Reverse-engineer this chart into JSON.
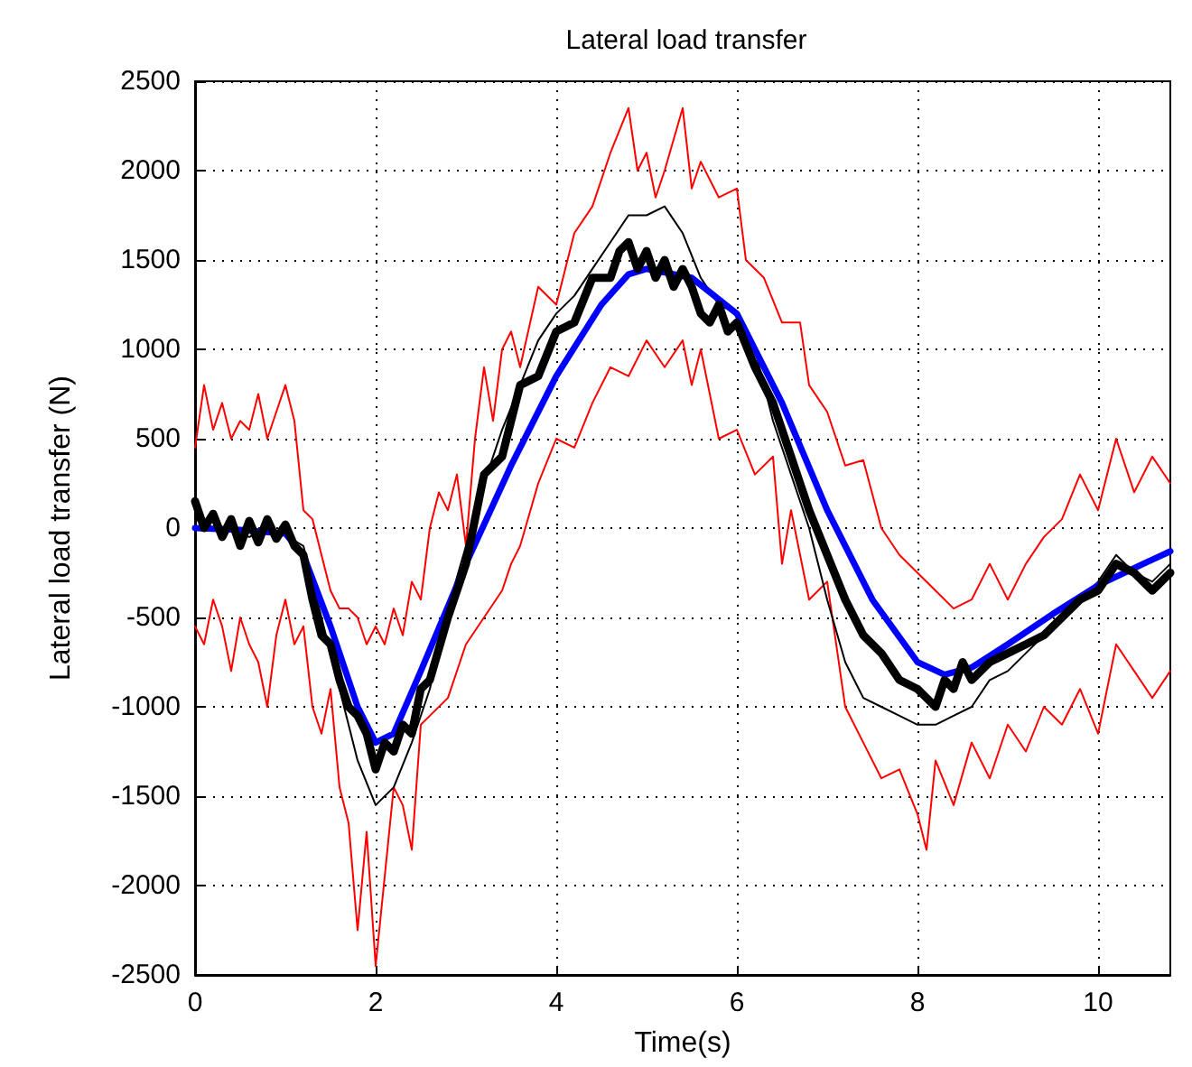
{
  "chart_data": {
    "type": "line",
    "title": "Lateral load transfer",
    "xlabel": "Time(s)",
    "ylabel": "Lateral load transfer (N)",
    "xlim": [
      0,
      10.8
    ],
    "xticks": [
      0,
      2,
      4,
      6,
      8,
      10
    ],
    "ylim": [
      -2500,
      2500
    ],
    "yticks": [
      -2500,
      -2000,
      -1500,
      -1000,
      -500,
      0,
      500,
      1000,
      1500,
      2000,
      2500
    ],
    "grid": true,
    "marker": "none",
    "line_style": "solid",
    "series": [
      {
        "color": "#ff0000",
        "x": [
          0,
          0.1,
          0.2,
          0.3,
          0.4,
          0.5,
          0.6,
          0.7,
          0.8,
          0.9,
          1.0,
          1.1,
          1.2,
          1.3,
          1.4,
          1.5,
          1.6,
          1.7,
          1.8,
          1.9,
          2.0,
          2.1,
          2.2,
          2.3,
          2.4,
          2.5,
          2.6,
          2.7,
          2.8,
          2.9,
          3.0,
          3.1,
          3.2,
          3.3,
          3.4,
          3.5,
          3.6,
          3.8,
          4.0,
          4.2,
          4.4,
          4.6,
          4.8,
          4.9,
          5.0,
          5.1,
          5.2,
          5.4,
          5.5,
          5.6,
          5.8,
          6.0,
          6.1,
          6.3,
          6.5,
          6.7,
          6.8,
          7.0,
          7.2,
          7.4,
          7.6,
          7.8,
          8.0,
          8.2,
          8.4,
          8.6,
          8.8,
          9.0,
          9.2,
          9.4,
          9.6,
          9.8,
          10.0,
          10.2,
          10.4,
          10.6,
          10.8
        ],
        "values": [
          450,
          800,
          550,
          700,
          500,
          600,
          550,
          750,
          500,
          650,
          800,
          600,
          100,
          50,
          -150,
          -350,
          -450,
          -450,
          -500,
          -650,
          -550,
          -650,
          -450,
          -600,
          -300,
          -400,
          0,
          200,
          100,
          300,
          -100,
          500,
          900,
          600,
          1000,
          1100,
          900,
          1350,
          1250,
          1650,
          1800,
          2100,
          2350,
          2000,
          2100,
          1850,
          2000,
          2350,
          1900,
          2050,
          1850,
          1900,
          1500,
          1400,
          1150,
          1150,
          800,
          650,
          350,
          380,
          0,
          -150,
          -250,
          -350,
          -450,
          -400,
          -200,
          -400,
          -200,
          -50,
          50,
          300,
          100,
          500,
          200,
          400,
          250
        ]
      },
      {
        "color": "#ff0000",
        "x": [
          0,
          0.1,
          0.2,
          0.3,
          0.4,
          0.5,
          0.6,
          0.7,
          0.8,
          0.9,
          1.0,
          1.1,
          1.2,
          1.3,
          1.4,
          1.5,
          1.6,
          1.7,
          1.8,
          1.9,
          2.0,
          2.1,
          2.2,
          2.3,
          2.4,
          2.5,
          2.6,
          2.8,
          3.0,
          3.2,
          3.4,
          3.5,
          3.6,
          3.8,
          4.0,
          4.2,
          4.4,
          4.6,
          4.8,
          5.0,
          5.2,
          5.4,
          5.5,
          5.6,
          5.8,
          6.0,
          6.2,
          6.4,
          6.5,
          6.6,
          6.8,
          7.0,
          7.2,
          7.4,
          7.6,
          7.8,
          8.0,
          8.1,
          8.2,
          8.4,
          8.6,
          8.8,
          9.0,
          9.2,
          9.4,
          9.6,
          9.8,
          10.0,
          10.2,
          10.4,
          10.6,
          10.8
        ],
        "values": [
          -550,
          -650,
          -400,
          -550,
          -800,
          -500,
          -650,
          -750,
          -1000,
          -600,
          -400,
          -650,
          -550,
          -1000,
          -1150,
          -900,
          -1450,
          -1650,
          -2250,
          -1700,
          -2450,
          -1950,
          -1450,
          -1550,
          -1800,
          -1100,
          -1050,
          -950,
          -650,
          -500,
          -350,
          -200,
          -100,
          250,
          500,
          450,
          700,
          900,
          850,
          1050,
          900,
          1050,
          800,
          1000,
          500,
          550,
          300,
          400,
          -200,
          100,
          -400,
          -300,
          -1000,
          -1200,
          -1400,
          -1350,
          -1600,
          -1800,
          -1300,
          -1550,
          -1200,
          -1400,
          -1100,
          -1250,
          -1000,
          -1100,
          -900,
          -1150,
          -650,
          -800,
          -950,
          -800
        ]
      },
      {
        "color": "#000000",
        "x": [
          0,
          0.2,
          0.4,
          0.6,
          0.8,
          1.0,
          1.2,
          1.4,
          1.6,
          1.8,
          2.0,
          2.2,
          2.4,
          2.6,
          2.8,
          3.0,
          3.2,
          3.4,
          3.6,
          3.8,
          4.0,
          4.2,
          4.4,
          4.6,
          4.8,
          5.0,
          5.2,
          5.4,
          5.6,
          5.8,
          6.0,
          6.2,
          6.4,
          6.6,
          6.8,
          7.0,
          7.2,
          7.4,
          7.6,
          7.8,
          8.0,
          8.2,
          8.4,
          8.6,
          8.8,
          9.0,
          9.2,
          9.4,
          9.6,
          9.8,
          10.0,
          10.2,
          10.4,
          10.6,
          10.8
        ],
        "values": [
          50,
          0,
          -20,
          -50,
          0,
          -40,
          -100,
          -500,
          -900,
          -1300,
          -1550,
          -1450,
          -1200,
          -900,
          -450,
          -100,
          250,
          550,
          800,
          1050,
          1200,
          1300,
          1450,
          1600,
          1750,
          1750,
          1800,
          1650,
          1400,
          1250,
          1200,
          1000,
          600,
          300,
          0,
          -400,
          -750,
          -950,
          -1000,
          -1050,
          -1100,
          -1100,
          -1050,
          -1000,
          -850,
          -800,
          -700,
          -600,
          -500,
          -400,
          -300,
          -150,
          -250,
          -300,
          -200
        ]
      },
      {
        "color": "#0000ff",
        "x": [
          0,
          0.5,
          1.0,
          1.2,
          1.5,
          1.8,
          2.0,
          2.2,
          2.5,
          3.0,
          3.5,
          4.0,
          4.5,
          4.8,
          5.0,
          5.5,
          6.0,
          6.5,
          7.0,
          7.5,
          8.0,
          8.3,
          8.6,
          9.0,
          9.5,
          10.0,
          10.5,
          10.8
        ],
        "values": [
          0,
          -10,
          -30,
          -150,
          -550,
          -1000,
          -1200,
          -1150,
          -800,
          -200,
          350,
          850,
          1250,
          1420,
          1450,
          1400,
          1200,
          700,
          100,
          -400,
          -750,
          -820,
          -780,
          -650,
          -480,
          -320,
          -200,
          -130
        ]
      },
      {
        "color": "#000000",
        "x": [
          0,
          0.1,
          0.2,
          0.3,
          0.4,
          0.5,
          0.6,
          0.7,
          0.8,
          0.9,
          1.0,
          1.1,
          1.2,
          1.3,
          1.4,
          1.5,
          1.6,
          1.7,
          1.8,
          1.9,
          2.0,
          2.1,
          2.2,
          2.3,
          2.4,
          2.5,
          2.6,
          2.8,
          3.0,
          3.2,
          3.4,
          3.6,
          3.8,
          4.0,
          4.2,
          4.4,
          4.6,
          4.7,
          4.8,
          4.9,
          5.0,
          5.1,
          5.2,
          5.3,
          5.4,
          5.5,
          5.6,
          5.7,
          5.8,
          5.9,
          6.0,
          6.2,
          6.4,
          6.6,
          6.8,
          7.0,
          7.2,
          7.4,
          7.6,
          7.8,
          8.0,
          8.1,
          8.2,
          8.3,
          8.4,
          8.5,
          8.6,
          8.8,
          9.0,
          9.2,
          9.4,
          9.6,
          9.8,
          10.0,
          10.2,
          10.4,
          10.6,
          10.8
        ],
        "values": [
          150,
          0,
          80,
          -50,
          50,
          -100,
          40,
          -80,
          50,
          -60,
          20,
          -100,
          -150,
          -400,
          -600,
          -650,
          -850,
          -1000,
          -1050,
          -1150,
          -1350,
          -1200,
          -1250,
          -1100,
          -1150,
          -900,
          -850,
          -500,
          -200,
          300,
          400,
          800,
          850,
          1100,
          1150,
          1400,
          1400,
          1550,
          1600,
          1450,
          1550,
          1400,
          1500,
          1350,
          1450,
          1350,
          1200,
          1150,
          1250,
          1100,
          1150,
          900,
          700,
          400,
          100,
          -150,
          -400,
          -600,
          -700,
          -850,
          -900,
          -950,
          -1000,
          -850,
          -900,
          -750,
          -850,
          -750,
          -700,
          -650,
          -600,
          -500,
          -400,
          -350,
          -200,
          -250,
          -350,
          -250
        ]
      }
    ]
  }
}
